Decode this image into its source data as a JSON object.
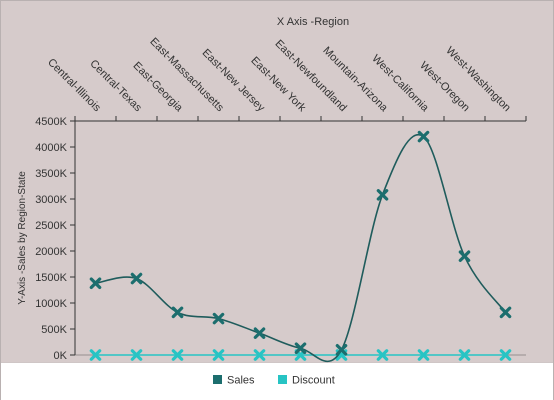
{
  "chart_data": {
    "type": "line",
    "title": "X Axis -Region",
    "xlabel": "X Axis -Region",
    "ylabel": "Y-Axis -Sales by Region-State",
    "categories": [
      "Central-Illinois",
      "Central-Texas",
      "East-Georgia",
      "East-Massachusetts",
      "East-New Jersey",
      "East-New York",
      "East-Newfoundland",
      "Mountain-Arizona",
      "West-California",
      "West-Oregon",
      "West-Washington"
    ],
    "series": [
      {
        "name": "Sales",
        "values": [
          1380000,
          1470000,
          820000,
          700000,
          420000,
          130000,
          100000,
          3080000,
          4200000,
          1900000,
          820000
        ],
        "color": "#1f5c5c"
      },
      {
        "name": "Discount",
        "values": [
          0,
          0,
          0,
          0,
          0,
          0,
          0,
          0,
          0,
          0,
          0
        ],
        "color": "#27c4c4"
      }
    ],
    "ylim": [
      0,
      4500000
    ],
    "yticks": [
      "0K",
      "500K",
      "1000K",
      "1500K",
      "2000K",
      "2500K",
      "3000K",
      "3500K",
      "4000K",
      "4500K"
    ],
    "ytick_values": [
      0,
      500000,
      1000000,
      1500000,
      2000000,
      2500000,
      3000000,
      3500000,
      4000000,
      4500000
    ],
    "x_axis_position": "top",
    "legend_position": "bottom",
    "grid": false
  },
  "legend": {
    "sales_label": "Sales",
    "discount_label": "Discount"
  },
  "colors": {
    "background": "#d6cbcb",
    "sales": "#1f5c5c",
    "sales_marker": "#1c6e6e",
    "discount": "#27c4c4"
  }
}
